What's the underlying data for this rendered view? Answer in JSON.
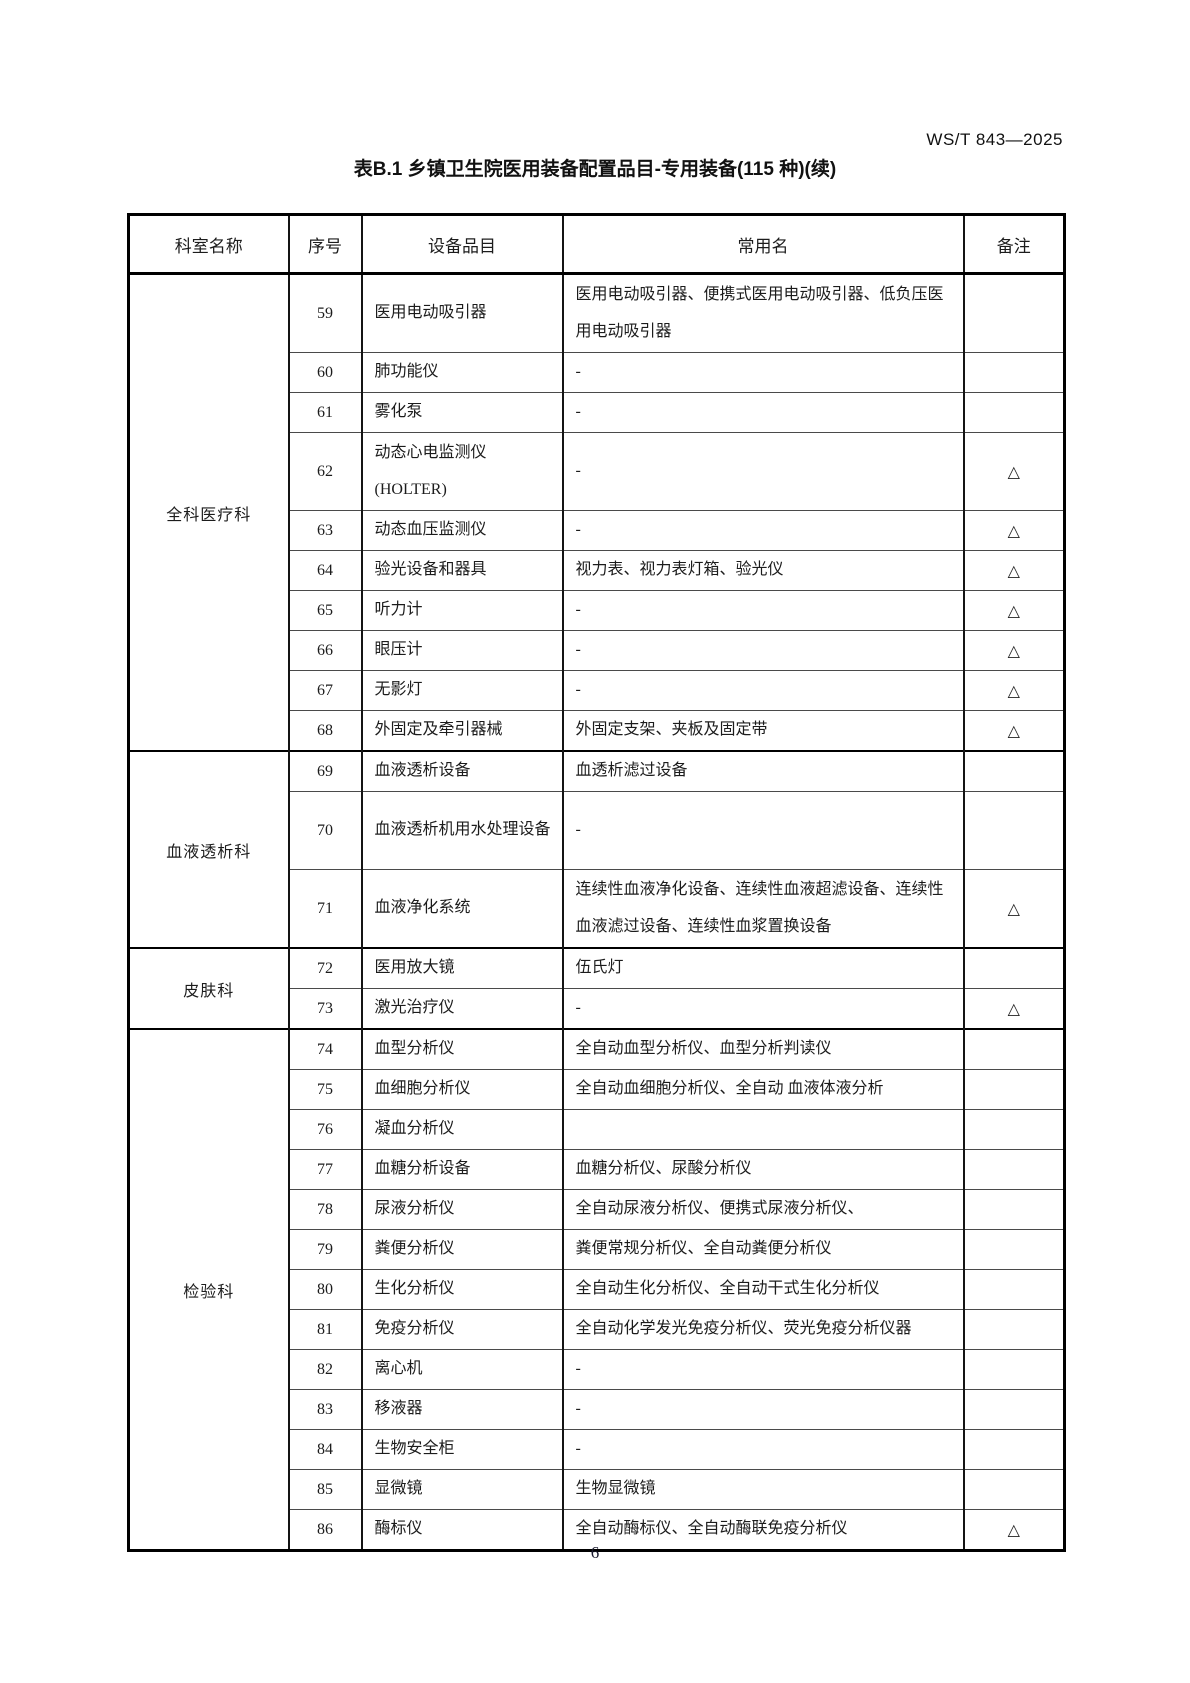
{
  "page": {
    "doc_code": "WS/T 843—2025",
    "title": "表B.1 乡镇卫生院医用装备配置品目-专用装备(115 种)(续)",
    "page_number": "6"
  },
  "table": {
    "columns": [
      "科室名称",
      "序号",
      "设备品目",
      "常用名",
      "备注"
    ],
    "triangle": "△",
    "sections": [
      {
        "department": "全科医疗科",
        "rows": [
          {
            "no": "59",
            "item": "医用电动吸引器",
            "common": "医用电动吸引器、便携式医用电动吸引器、低负压医用电动吸引器",
            "remark": "",
            "tall": true
          },
          {
            "no": "60",
            "item": "肺功能仪",
            "common": "-",
            "remark": "",
            "tall": false
          },
          {
            "no": "61",
            "item": "雾化泵",
            "common": "-",
            "remark": "",
            "tall": false
          },
          {
            "no": "62",
            "item": "动态心电监测仪\n(HOLTER)",
            "common": "-",
            "remark": "△",
            "tall": true
          },
          {
            "no": "63",
            "item": "动态血压监测仪",
            "common": "-",
            "remark": "△",
            "tall": false
          },
          {
            "no": "64",
            "item": "验光设备和器具",
            "common": "视力表、视力表灯箱、验光仪",
            "remark": "△",
            "tall": false
          },
          {
            "no": "65",
            "item": "听力计",
            "common": "-",
            "remark": "△",
            "tall": false
          },
          {
            "no": "66",
            "item": "眼压计",
            "common": "-",
            "remark": "△",
            "tall": false
          },
          {
            "no": "67",
            "item": "无影灯",
            "common": "-",
            "remark": "△",
            "tall": false
          },
          {
            "no": "68",
            "item": "外固定及牵引器械",
            "common": "外固定支架、夹板及固定带",
            "remark": "△",
            "tall": false
          }
        ]
      },
      {
        "department": "血液透析科",
        "rows": [
          {
            "no": "69",
            "item": "血液透析设备",
            "common": "血透析滤过设备",
            "remark": "",
            "tall": false
          },
          {
            "no": "70",
            "item": "血液透析机用水处理设备",
            "common": "-",
            "remark": "",
            "tall": true
          },
          {
            "no": "71",
            "item": "血液净化系统",
            "common": "连续性血液净化设备、连续性血液超滤设备、连续性血液滤过设备、连续性血浆置换设备",
            "remark": "△",
            "tall": true
          }
        ]
      },
      {
        "department": "皮肤科",
        "rows": [
          {
            "no": "72",
            "item": "医用放大镜",
            "common": "伍氏灯",
            "remark": "",
            "tall": false
          },
          {
            "no": "73",
            "item": "激光治疗仪",
            "common": "-",
            "remark": "△",
            "tall": false
          }
        ]
      },
      {
        "department": "检验科",
        "rows": [
          {
            "no": "74",
            "item": "血型分析仪",
            "common": "全自动血型分析仪、血型分析判读仪",
            "remark": "",
            "tall": false
          },
          {
            "no": "75",
            "item": "血细胞分析仪",
            "common": "全自动血细胞分析仪、全自动 血液体液分析",
            "remark": "",
            "tall": false
          },
          {
            "no": "76",
            "item": "凝血分析仪",
            "common": "",
            "remark": "",
            "tall": false
          },
          {
            "no": "77",
            "item": "血糖分析设备",
            "common": "血糖分析仪、尿酸分析仪",
            "remark": "",
            "tall": false
          },
          {
            "no": "78",
            "item": "尿液分析仪",
            "common": "全自动尿液分析仪、便携式尿液分析仪、",
            "remark": "",
            "tall": false
          },
          {
            "no": "79",
            "item": "粪便分析仪",
            "common": "粪便常规分析仪、全自动粪便分析仪",
            "remark": "",
            "tall": false
          },
          {
            "no": "80",
            "item": "生化分析仪",
            "common": "全自动生化分析仪、全自动干式生化分析仪",
            "remark": "",
            "tall": false
          },
          {
            "no": "81",
            "item": "免疫分析仪",
            "common": "全自动化学发光免疫分析仪、荧光免疫分析仪器",
            "remark": "",
            "tall": false
          },
          {
            "no": "82",
            "item": "离心机",
            "common": "-",
            "remark": "",
            "tall": false
          },
          {
            "no": "83",
            "item": "移液器",
            "common": "-",
            "remark": "",
            "tall": false
          },
          {
            "no": "84",
            "item": "生物安全柜",
            "common": "-",
            "remark": "",
            "tall": false
          },
          {
            "no": "85",
            "item": "显微镜",
            "common": "生物显微镜",
            "remark": "",
            "tall": false
          },
          {
            "no": "86",
            "item": "酶标仪",
            "common": "全自动酶标仪、全自动酶联免疫分析仪",
            "remark": "△",
            "tall": false
          }
        ]
      }
    ]
  }
}
